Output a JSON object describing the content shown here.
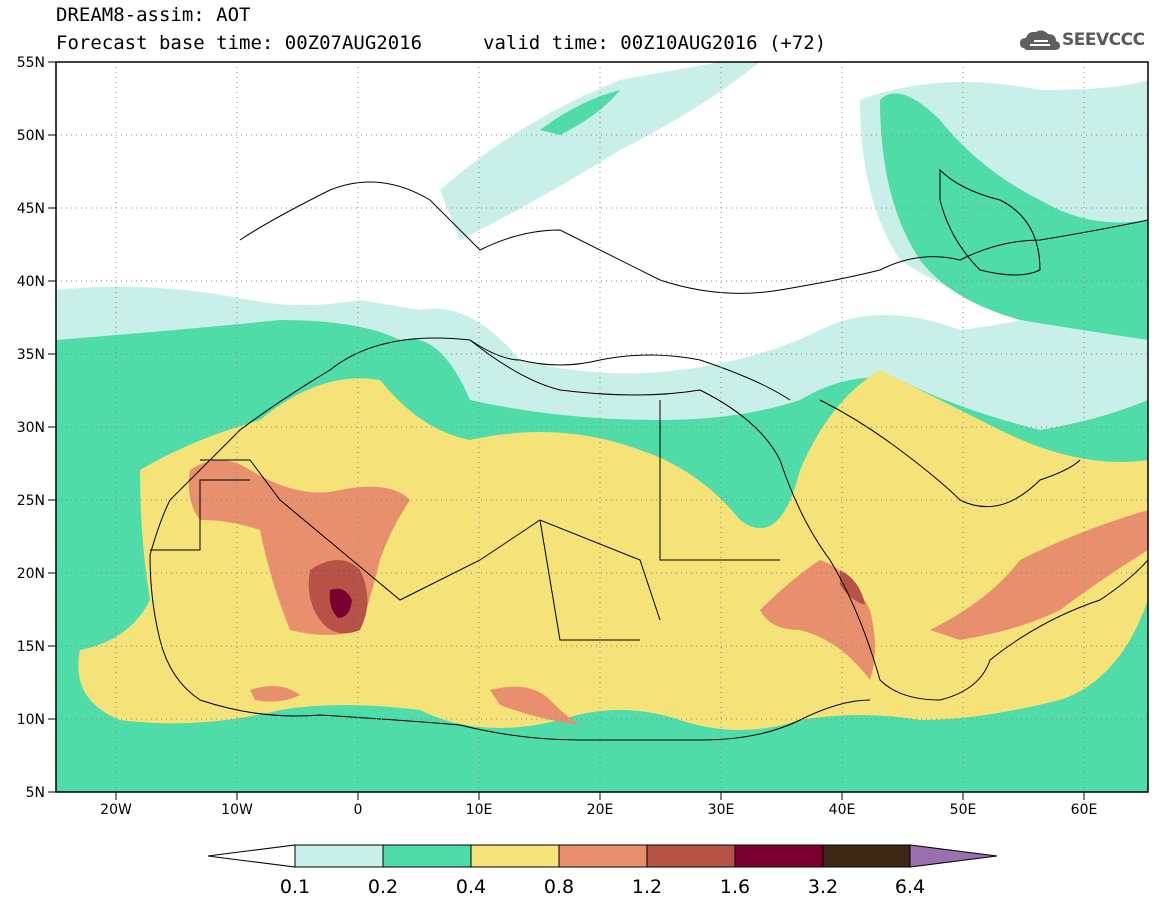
{
  "header": {
    "title": "DREAM8-assim: AOT",
    "base_time": "Forecast base time: 00Z07AUG2016",
    "valid_time": "valid time: 00Z10AUG2016 (+72)",
    "logo_text": "SEEVCCC"
  },
  "axes": {
    "lat_labels": [
      "55N",
      "50N",
      "45N",
      "40N",
      "35N",
      "30N",
      "25N",
      "20N",
      "15N",
      "10N",
      "5N"
    ],
    "lon_labels": [
      "20W",
      "10W",
      "0",
      "10E",
      "20E",
      "30E",
      "40E",
      "50E",
      "60E"
    ]
  },
  "colorbar": {
    "tick_labels": [
      "0.1",
      "0.2",
      "0.4",
      "0.8",
      "1.2",
      "1.6",
      "3.2",
      "6.4"
    ],
    "colors": [
      "#ffffff",
      "#c8f0e8",
      "#50dca8",
      "#f5e278",
      "#e8906e",
      "#b65246",
      "#7a0030",
      "#3c2814",
      "#9a70b0"
    ]
  },
  "map": {
    "background": "#ffffff",
    "coast_color": "#000000"
  }
}
